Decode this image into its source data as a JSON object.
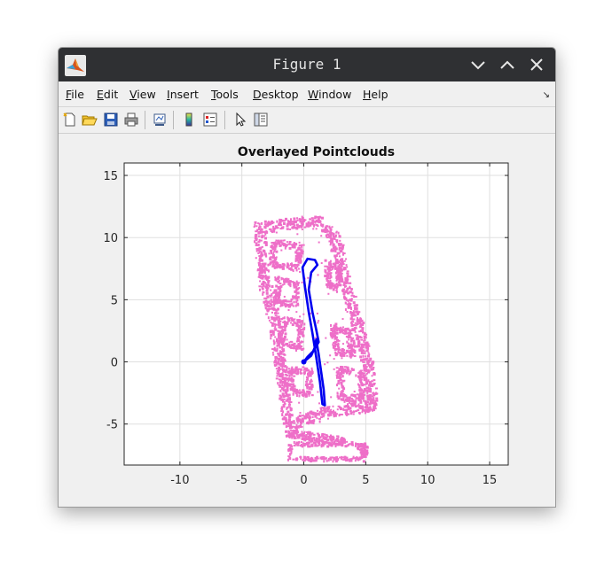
{
  "window": {
    "title": "Figure 1",
    "controls": {
      "minimize": "chevron-down-icon",
      "maximize": "chevron-up-icon",
      "close": "close-icon"
    }
  },
  "menubar": {
    "items": [
      {
        "label": "File",
        "mnemonic": "F"
      },
      {
        "label": "Edit",
        "mnemonic": "E"
      },
      {
        "label": "View",
        "mnemonic": "V"
      },
      {
        "label": "Insert",
        "mnemonic": "I"
      },
      {
        "label": "Tools",
        "mnemonic": "T"
      },
      {
        "label": "Desktop",
        "mnemonic": "D"
      },
      {
        "label": "Window",
        "mnemonic": "W"
      },
      {
        "label": "Help",
        "mnemonic": "H"
      }
    ],
    "dock_icon": "dock-arrow-icon"
  },
  "toolbar": {
    "buttons": [
      "new-figure-icon",
      "open-file-icon",
      "save-icon",
      "print-icon",
      "link-plot-icon",
      "colorbar-icon",
      "legend-icon",
      "pointer-icon",
      "property-inspector-icon"
    ]
  },
  "chart_data": {
    "type": "scatter",
    "title": "Overlayed Pointclouds",
    "xlabel": "",
    "ylabel": "",
    "xlim": [
      -14.5,
      16.5
    ],
    "ylim": [
      -8.3,
      16
    ],
    "xticks": [
      -10,
      -5,
      0,
      5,
      10,
      15
    ],
    "yticks": [
      -5,
      0,
      5,
      10,
      15
    ],
    "grid": true,
    "colors": {
      "pointcloud": "#ee6fc8",
      "trajectory": "#0000f0"
    },
    "series": [
      {
        "kind": "pointcloud",
        "outline": [
          [
            -3.6,
            10.8
          ],
          [
            1.0,
            11.4
          ],
          [
            2.5,
            10.0
          ],
          [
            3.3,
            6.5
          ],
          [
            4.3,
            3.0
          ],
          [
            5.0,
            0.5
          ],
          [
            5.6,
            -3.5
          ],
          [
            1.5,
            -4.1
          ],
          [
            -1.2,
            -5.2
          ],
          [
            -1.8,
            -1.0
          ],
          [
            -2.4,
            3.5
          ],
          [
            -3.2,
            6.5
          ]
        ],
        "rooms": [
          [
            [
              -2.4,
              9.6
            ],
            [
              -0.3,
              9.3
            ],
            [
              -0.6,
              7.6
            ],
            [
              -2.5,
              7.8
            ]
          ],
          [
            [
              -2.1,
              6.6
            ],
            [
              -0.6,
              6.2
            ],
            [
              -0.8,
              4.6
            ],
            [
              -2.2,
              4.8
            ]
          ],
          [
            [
              2.0,
              8.0
            ],
            [
              2.9,
              7.3
            ],
            [
              2.6,
              5.9
            ],
            [
              1.9,
              6.4
            ]
          ],
          [
            [
              -1.7,
              3.4
            ],
            [
              -0.2,
              3.1
            ],
            [
              -0.3,
              1.2
            ],
            [
              -1.8,
              1.6
            ]
          ],
          [
            [
              2.4,
              2.9
            ],
            [
              3.7,
              2.3
            ],
            [
              3.9,
              0.6
            ],
            [
              2.6,
              0.8
            ]
          ],
          [
            [
              -1.1,
              -0.6
            ],
            [
              0.5,
              -0.7
            ],
            [
              0.4,
              -2.6
            ],
            [
              -0.9,
              -2.4
            ]
          ],
          [
            [
              2.9,
              -0.6
            ],
            [
              4.6,
              -0.9
            ],
            [
              4.7,
              -2.9
            ],
            [
              3.0,
              -2.9
            ]
          ]
        ],
        "extra": [
          [
            [
              -1.3,
              -5.6
            ],
            [
              3.2,
              -6.2
            ],
            [
              3.1,
              -6.5
            ],
            [
              -1.3,
              -5.9
            ]
          ],
          [
            [
              4.5,
              -6.7
            ],
            [
              5.0,
              -6.8
            ],
            [
              5.0,
              -7.3
            ],
            [
              4.5,
              -7.3
            ]
          ],
          [
            [
              -1.1,
              -6.6
            ],
            [
              4.8,
              -6.6
            ],
            [
              4.8,
              -7.8
            ],
            [
              -1.1,
              -7.8
            ]
          ]
        ]
      },
      {
        "kind": "trajectory",
        "points": [
          [
            0.0,
            0.0
          ],
          [
            0.6,
            0.5
          ],
          [
            0.9,
            1.2
          ],
          [
            1.0,
            1.8
          ],
          [
            1.2,
            0.6
          ],
          [
            1.4,
            -0.8
          ],
          [
            1.6,
            -2.2
          ],
          [
            1.7,
            -3.5
          ],
          [
            1.5,
            -3.4
          ],
          [
            1.3,
            -1.6
          ],
          [
            1.0,
            0.4
          ],
          [
            0.7,
            2.3
          ],
          [
            0.4,
            4.0
          ],
          [
            0.1,
            6.0
          ],
          [
            -0.1,
            7.6
          ],
          [
            0.3,
            8.3
          ],
          [
            0.9,
            8.2
          ],
          [
            1.1,
            7.8
          ],
          [
            0.6,
            7.2
          ],
          [
            0.4,
            5.8
          ],
          [
            0.7,
            4.0
          ],
          [
            1.0,
            2.6
          ],
          [
            1.2,
            1.6
          ],
          [
            0.8,
            0.9
          ],
          [
            0.3,
            0.4
          ],
          [
            0.0,
            0.0
          ]
        ]
      }
    ]
  }
}
